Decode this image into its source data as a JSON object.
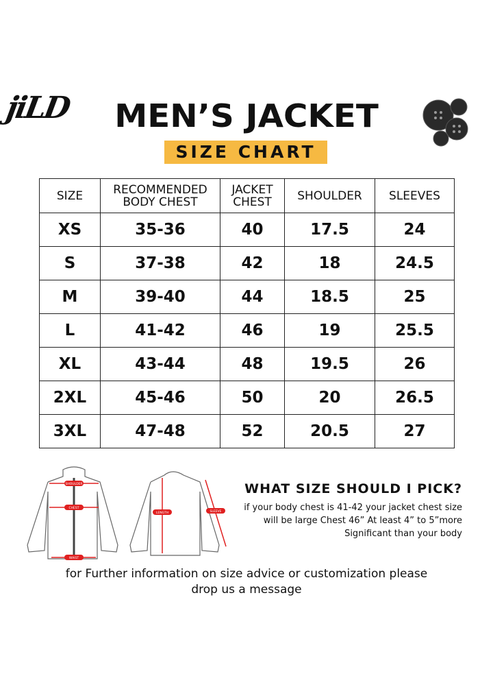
{
  "logo": "jiLD",
  "title": "MEN’S JACKET",
  "subtitle": "SIZE CHART",
  "accent": "#f6b942",
  "table": {
    "headers": [
      [
        "SIZE"
      ],
      [
        "RECOMMENDED",
        "BODY CHEST"
      ],
      [
        "JACKET",
        "CHEST"
      ],
      [
        "SHOULDER"
      ],
      [
        "SLEEVES"
      ]
    ],
    "rows": [
      [
        "XS",
        "35-36",
        "40",
        "17.5",
        "24"
      ],
      [
        "S",
        "37-38",
        "42",
        "18",
        "24.5"
      ],
      [
        "M",
        "39-40",
        "44",
        "18.5",
        "25"
      ],
      [
        "L",
        "41-42",
        "46",
        "19",
        "25.5"
      ],
      [
        "XL",
        "43-44",
        "48",
        "19.5",
        "26"
      ],
      [
        "2XL",
        "45-46",
        "50",
        "20",
        "26.5"
      ],
      [
        "3XL",
        "47-48",
        "52",
        "20.5",
        "27"
      ]
    ]
  },
  "diagram": {
    "labels": [
      "SHOULDER",
      "CHEST",
      "WAIST",
      "LENGTH",
      "SLEEVE"
    ]
  },
  "pick": {
    "heading": "WHAT SIZE SHOULD I PICK?",
    "lines": [
      "if your body chest is 41-42 your jacket chest size",
      "will be large Chest 46” At least 4” to 5”more",
      "Significant than your body"
    ]
  },
  "footer": [
    "for Further information on size advice or customization please",
    "drop us a message"
  ]
}
